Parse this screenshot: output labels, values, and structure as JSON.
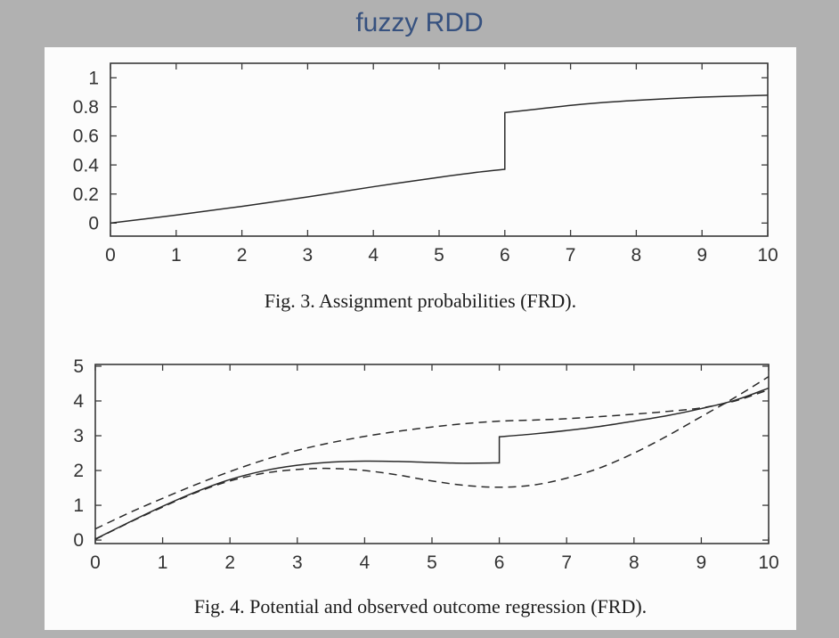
{
  "title": "fuzzy RDD",
  "colors": {
    "background": "#b1b1b1",
    "panel": "#fcfcfc",
    "title_text": "#36517f",
    "curve": "#2a2a2a",
    "axis": "#3a3a3a"
  },
  "chart_data": [
    {
      "id": "fig3",
      "type": "line",
      "caption": "Fig. 3.  Assignment probabilities (FRD).",
      "xlabel": "",
      "ylabel": "",
      "xlim": [
        0,
        10
      ],
      "ylim": [
        -0.09,
        1.1
      ],
      "grid": false,
      "legend": "none",
      "xticks": [
        0,
        1,
        2,
        3,
        4,
        5,
        6,
        7,
        8,
        9,
        10
      ],
      "xtick_labels": [
        "0",
        "1",
        "2",
        "3",
        "4",
        "5",
        "6",
        "7",
        "8",
        "9",
        "10"
      ],
      "yticks": [
        0,
        0.2,
        0.4,
        0.6,
        0.8,
        1
      ],
      "ytick_labels": [
        "0",
        "0.2",
        "0.4",
        "0.6",
        "0.8",
        "1"
      ],
      "discontinuity_x": 6,
      "series": [
        {
          "name": "assignment-probability",
          "label": "P(treatment | x), jumps from 0.37 to 0.76 at x=6",
          "style": "solid",
          "segments": [
            [
              [
                0,
                0
              ],
              [
                1,
                0.055
              ],
              [
                2,
                0.115
              ],
              [
                3,
                0.18
              ],
              [
                4,
                0.25
              ],
              [
                5,
                0.315
              ],
              [
                5.5,
                0.345
              ],
              [
                6,
                0.37
              ]
            ],
            [
              [
                6,
                0.76
              ],
              [
                6.5,
                0.785
              ],
              [
                7,
                0.81
              ],
              [
                7.5,
                0.83
              ],
              [
                8,
                0.845
              ],
              [
                8.5,
                0.857
              ],
              [
                9,
                0.867
              ],
              [
                9.5,
                0.874
              ],
              [
                10,
                0.88
              ]
            ]
          ]
        }
      ]
    },
    {
      "id": "fig4",
      "type": "line",
      "caption": "Fig. 4.  Potential and observed outcome regression (FRD).",
      "xlabel": "",
      "ylabel": "",
      "xlim": [
        0,
        10
      ],
      "ylim": [
        -0.1,
        5.05
      ],
      "grid": false,
      "legend": "none",
      "xticks": [
        0,
        1,
        2,
        3,
        4,
        5,
        6,
        7,
        8,
        9,
        10
      ],
      "xtick_labels": [
        "0",
        "1",
        "2",
        "3",
        "4",
        "5",
        "6",
        "7",
        "8",
        "9",
        "10"
      ],
      "yticks": [
        0,
        1,
        2,
        3,
        4,
        5
      ],
      "ytick_labels": [
        "0",
        "1",
        "2",
        "3",
        "4",
        "5"
      ],
      "discontinuity_x": 6,
      "series": [
        {
          "name": "treated-potential-outcome",
          "label": "potential outcome regression, treated (dashed)",
          "style": "dashed",
          "segments": [
            [
              [
                0,
                0.32
              ],
              [
                0.5,
                0.78
              ],
              [
                1,
                1.2
              ],
              [
                1.5,
                1.6
              ],
              [
                2,
                1.97
              ],
              [
                2.5,
                2.3
              ],
              [
                3,
                2.58
              ],
              [
                3.5,
                2.8
              ],
              [
                4,
                2.98
              ],
              [
                4.5,
                3.13
              ],
              [
                5,
                3.25
              ],
              [
                5.5,
                3.35
              ],
              [
                6,
                3.42
              ],
              [
                6.5,
                3.45
              ],
              [
                7,
                3.49
              ],
              [
                7.5,
                3.55
              ],
              [
                8,
                3.62
              ],
              [
                8.5,
                3.7
              ],
              [
                9,
                3.8
              ],
              [
                9.5,
                4.0
              ],
              [
                10,
                4.32
              ]
            ]
          ]
        },
        {
          "name": "control-potential-outcome",
          "label": "potential outcome regression, control (dashed)",
          "style": "dashed",
          "segments": [
            [
              [
                0,
                0.02
              ],
              [
                0.5,
                0.5
              ],
              [
                1,
                0.95
              ],
              [
                1.5,
                1.37
              ],
              [
                2,
                1.7
              ],
              [
                2.5,
                1.92
              ],
              [
                3,
                2.03
              ],
              [
                3.5,
                2.06
              ],
              [
                4,
                2.0
              ],
              [
                4.5,
                1.87
              ],
              [
                5,
                1.7
              ],
              [
                5.5,
                1.57
              ],
              [
                6,
                1.52
              ],
              [
                6.5,
                1.58
              ],
              [
                7,
                1.78
              ],
              [
                7.5,
                2.08
              ],
              [
                8,
                2.5
              ],
              [
                8.5,
                3.0
              ],
              [
                9,
                3.55
              ],
              [
                9.5,
                4.1
              ],
              [
                10,
                4.7
              ]
            ]
          ]
        },
        {
          "name": "observed-outcome",
          "label": "observed outcome regression (solid), jumps at x=6",
          "style": "solid",
          "segments": [
            [
              [
                0,
                0.03
              ],
              [
                0.5,
                0.51
              ],
              [
                1,
                0.97
              ],
              [
                1.5,
                1.39
              ],
              [
                2,
                1.74
              ],
              [
                2.5,
                1.99
              ],
              [
                3,
                2.15
              ],
              [
                3.5,
                2.24
              ],
              [
                4,
                2.27
              ],
              [
                4.5,
                2.26
              ],
              [
                5,
                2.23
              ],
              [
                5.5,
                2.21
              ],
              [
                6,
                2.22
              ]
            ],
            [
              [
                6,
                2.97
              ],
              [
                6.5,
                3.05
              ],
              [
                7,
                3.15
              ],
              [
                7.5,
                3.27
              ],
              [
                8,
                3.42
              ],
              [
                8.5,
                3.58
              ],
              [
                9,
                3.78
              ],
              [
                9.5,
                4.02
              ],
              [
                10,
                4.37
              ]
            ]
          ]
        }
      ]
    }
  ]
}
